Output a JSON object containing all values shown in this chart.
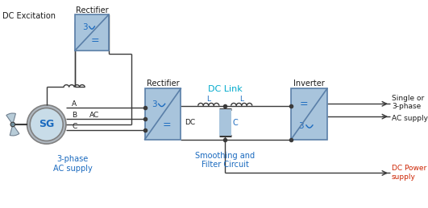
{
  "bg_color": "#ffffff",
  "box_fill": "#a8c4dc",
  "box_edge": "#5a7fa8",
  "line_color": "#3a3a3a",
  "tb": "#1a1a1a",
  "tbl": "#1a6abf",
  "tr": "#cc2200",
  "tc": "#00aacc",
  "sg_fill": "#c8dce8",
  "sg_outer_fill": "#b0b8c0",
  "fan_fill": "#b8ccd8",
  "fig_w": 5.31,
  "fig_h": 2.59,
  "dpi": 100,
  "label_DC_Exc": "DC Excitation",
  "label_Rect_top": "Rectifier",
  "label_Rect_mid": "Rectifier",
  "label_Inverter": "Inverter",
  "label_DC_Link": "DC Link",
  "label_3phase": "3-phase\nAC supply",
  "label_Smooth": "Smoothing and\nFilter Circuit",
  "label_AC": "AC",
  "label_DC": "DC",
  "label_A": "A",
  "label_B": "B",
  "label_C_phase": "C",
  "label_L": "L",
  "label_Cap": "C",
  "label_SG": "SG",
  "label_single_or": "Single or",
  "label_3phase_ac": "3-phase",
  "label_ac_supply": "AC supply",
  "label_DC_power": "DC Power",
  "label_supply": "supply"
}
